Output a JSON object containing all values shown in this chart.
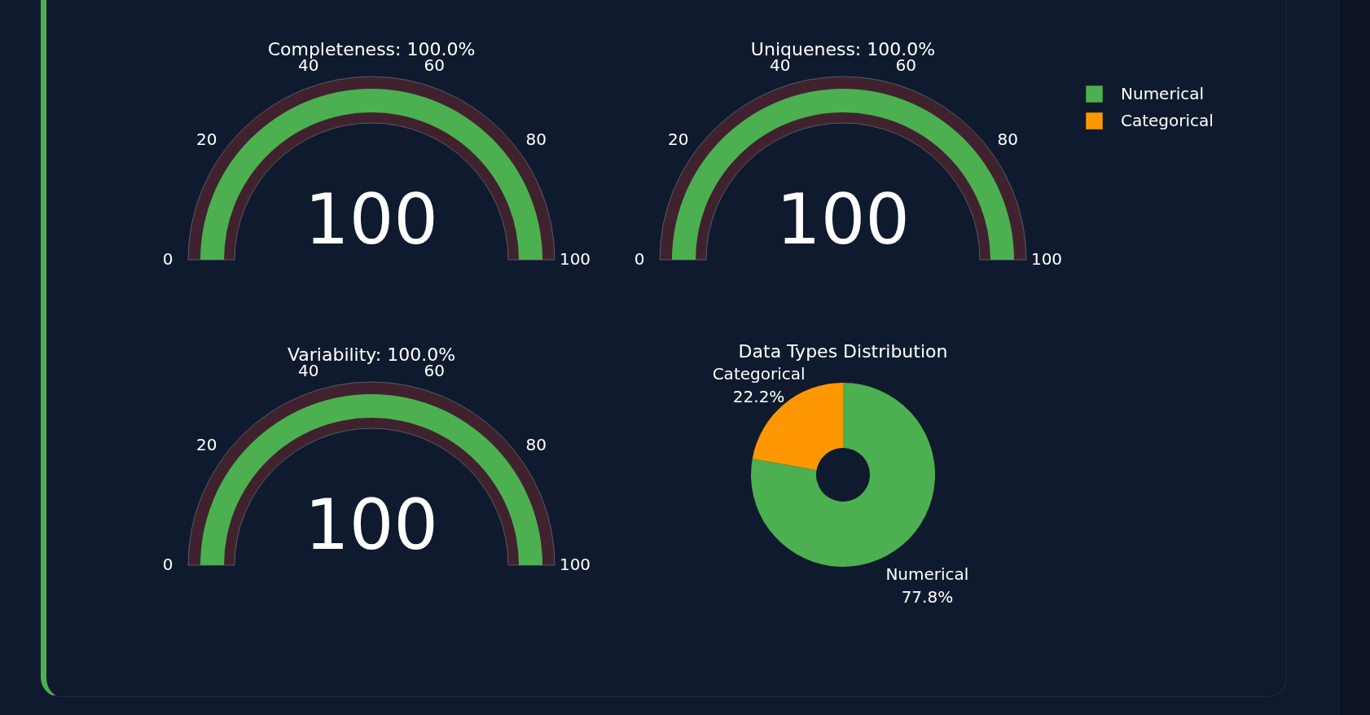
{
  "chart_data": [
    {
      "type": "other",
      "title": "Completeness: 100.0%",
      "data_labels": true,
      "values": [
        100
      ],
      "color": "#4caf50",
      "annotations": [
        "0",
        "20",
        "40",
        "60",
        "80",
        "100"
      ]
    },
    {
      "type": "other",
      "title": "Uniqueness: 100.0%",
      "data_labels": true,
      "values": [
        100
      ],
      "color": "#4caf50",
      "annotations": [
        "0",
        "20",
        "40",
        "60",
        "80",
        "100"
      ]
    },
    {
      "type": "other",
      "title": "Variability: 100.0%",
      "data_labels": true,
      "values": [
        100
      ],
      "color": "#4caf50",
      "annotations": [
        "0",
        "20",
        "40",
        "60",
        "80",
        "100"
      ]
    },
    {
      "type": "donut",
      "title": "Data Types Distribution",
      "categories": [
        "Numerical",
        "Categorical"
      ],
      "values": [
        77.8,
        22.2
      ],
      "colors": [
        "#4caf50",
        "#ff9800"
      ],
      "value_labels": [
        "77.8%",
        "22.2%"
      ],
      "legend": "top right"
    }
  ]
}
